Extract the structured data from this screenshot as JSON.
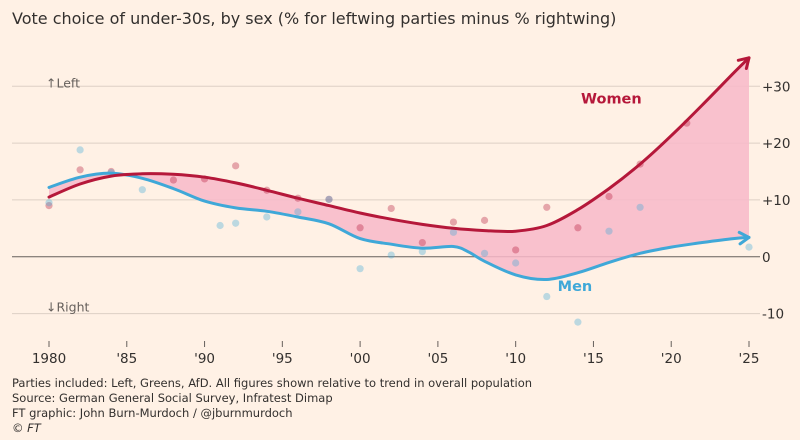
{
  "title": "Vote choice of under-30s, by sex (% for leftwing parties minus % rightwing)",
  "chart_data": {
    "type": "line",
    "title": "Vote choice of under-30s, by sex (% for leftwing parties minus % rightwing)",
    "xlim": [
      1980,
      2025
    ],
    "ylim": [
      -15,
      35
    ],
    "x_ticks": [
      1980,
      1985,
      1990,
      1995,
      2000,
      2005,
      2010,
      2015,
      2020,
      2025
    ],
    "x_tick_labels": [
      "1980",
      "'85",
      "'90",
      "'95",
      "'00",
      "'05",
      "'10",
      "'15",
      "'20",
      "'25"
    ],
    "y_ticks": [
      -10,
      0,
      10,
      20,
      30
    ],
    "y_tick_labels": [
      "-10",
      "0",
      "+10",
      "+20",
      "+30"
    ],
    "grid": "horizontal",
    "annotations": {
      "up": "↑Left",
      "down": "↓Right"
    },
    "fill_between": {
      "color": "#f8b9c9",
      "description": "gap between Women and Men trend lines"
    },
    "series": [
      {
        "name": "Women",
        "color": "#b5183a",
        "trend_x": [
          1980,
          1982,
          1984,
          1986,
          1988,
          1990,
          1992,
          1994,
          1996,
          1998,
          2000,
          2002,
          2004,
          2006,
          2008,
          2010,
          2012,
          2014,
          2016,
          2018,
          2020,
          2022,
          2024,
          2025
        ],
        "trend_y": [
          10.5,
          12.8,
          14.2,
          14.6,
          14.5,
          14.0,
          13.0,
          11.7,
          10.3,
          9.0,
          7.7,
          6.6,
          5.7,
          5.0,
          4.6,
          4.5,
          5.5,
          8.3,
          12.0,
          16.3,
          21.3,
          26.7,
          32.3,
          35
        ],
        "points_x": [
          1980,
          1982,
          1984,
          1988,
          1990,
          1992,
          1994,
          1996,
          1998,
          2000,
          2002,
          2004,
          2006,
          2008,
          2010,
          2012,
          2014,
          2016,
          2018,
          2021
        ],
        "points_y": [
          9,
          15.3,
          15,
          13.5,
          13.7,
          16,
          11.7,
          10.3,
          10.1,
          5.1,
          8.5,
          2.5,
          6.1,
          6.4,
          1.2,
          8.7,
          5.1,
          10.6,
          16.3,
          23.5
        ]
      },
      {
        "name": "Men",
        "color": "#3fa8d8",
        "trend_x": [
          1980,
          1982,
          1984,
          1986,
          1988,
          1990,
          1992,
          1994,
          1996,
          1998,
          2000,
          2002,
          2004,
          2006,
          2007,
          2008,
          2010,
          2012,
          2014,
          2016,
          2018,
          2020,
          2022,
          2024,
          2025
        ],
        "trend_y": [
          12.2,
          14.0,
          14.7,
          13.8,
          12.0,
          9.8,
          8.6,
          8.0,
          7.0,
          5.8,
          3.2,
          2.2,
          1.5,
          1.8,
          0.8,
          -0.8,
          -3.2,
          -4.0,
          -2.8,
          -1.0,
          0.6,
          1.7,
          2.5,
          3.2,
          3.4
        ],
        "points_x": [
          1980,
          1982,
          1984,
          1986,
          1991,
          1992,
          1994,
          1996,
          1998,
          2000,
          2002,
          2004,
          2006,
          2008,
          2010,
          2012,
          2014,
          2016,
          2018,
          2025
        ],
        "points_y": [
          9.5,
          18.8,
          14.8,
          11.8,
          5.5,
          5.9,
          7,
          7.9,
          10.1,
          -2.1,
          0.3,
          0.9,
          4.3,
          0.6,
          -1.1,
          -7,
          -11.5,
          4.5,
          8.7,
          1.7
        ]
      }
    ]
  },
  "footer": {
    "note": "Parties included: Left, Greens, AfD. All figures shown relative to trend in overall population",
    "source": "Source: German General Social Survey, Infratest Dimap",
    "credit": "FT graphic: John Burn-Murdoch / @jburnmurdoch",
    "copyright": "© FT"
  }
}
